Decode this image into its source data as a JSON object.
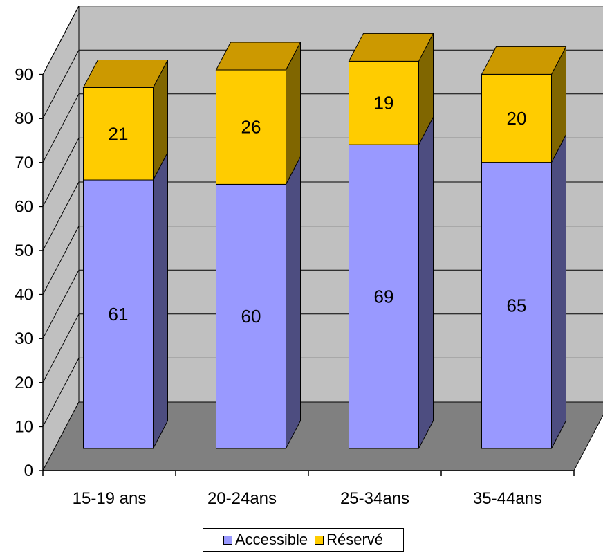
{
  "chart_data": {
    "type": "bar",
    "stacked": true,
    "three_d": true,
    "categories": [
      "15-19 ans",
      "20-24ans",
      "25-34ans",
      "35-44ans"
    ],
    "series": [
      {
        "name": "Accessible",
        "values": [
          61,
          60,
          69,
          65
        ],
        "color": "#9999ff",
        "side_color": "#4d4d80"
      },
      {
        "name": "Réservé",
        "values": [
          21,
          26,
          19,
          20
        ],
        "color": "#ffcc00",
        "side_color": "#806600"
      }
    ],
    "ylim": [
      0,
      90
    ],
    "yticks": [
      "0",
      "10",
      "20",
      "30",
      "40",
      "50",
      "60",
      "70",
      "80",
      "90"
    ],
    "grid": true,
    "legend_position": "bottom",
    "colors": {
      "wall": "#c0c0c0",
      "floor": "#808080",
      "gridline": "#000000"
    }
  }
}
